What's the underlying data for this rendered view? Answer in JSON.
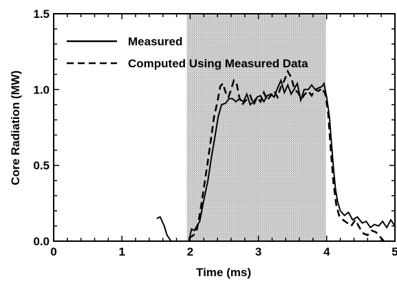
{
  "chart_data": {
    "type": "line",
    "xlabel": "Time (ms)",
    "ylabel": "Core Radiation (MW)",
    "xlim": [
      0,
      5
    ],
    "ylim": [
      0,
      1.5
    ],
    "x_ticks": [
      "0",
      "1",
      "2",
      "3",
      "4",
      "5"
    ],
    "y_ticks": [
      "0.0",
      "0.5",
      "1.0",
      "1.5"
    ],
    "x_tick_values": [
      0,
      1,
      2,
      3,
      4,
      5
    ],
    "y_tick_values": [
      0,
      0.5,
      1.0,
      1.5
    ],
    "grid": false,
    "legend_position": "top-left",
    "shaded_region": {
      "x_start": 1.95,
      "x_end": 3.99,
      "color": "#c8c8c8"
    },
    "series": [
      {
        "name": "Measured",
        "style": "solid",
        "color": "#000000",
        "points": [
          [
            1.51,
            0.15
          ],
          [
            1.56,
            0.16
          ],
          [
            1.62,
            0.1
          ],
          [
            1.66,
            0.04
          ],
          [
            1.72,
            0.0
          ],
          [
            1.98,
            0.0
          ],
          [
            2.02,
            0.08
          ],
          [
            2.06,
            0.07
          ],
          [
            2.1,
            0.1
          ],
          [
            2.14,
            0.13
          ],
          [
            2.2,
            0.27
          ],
          [
            2.26,
            0.4
          ],
          [
            2.31,
            0.55
          ],
          [
            2.36,
            0.68
          ],
          [
            2.41,
            0.82
          ],
          [
            2.46,
            0.9
          ],
          [
            2.52,
            0.91
          ],
          [
            2.57,
            0.94
          ],
          [
            2.62,
            0.94
          ],
          [
            2.67,
            0.92
          ],
          [
            2.72,
            0.94
          ],
          [
            2.78,
            0.92
          ],
          [
            2.83,
            0.97
          ],
          [
            2.88,
            0.9
          ],
          [
            2.93,
            0.92
          ],
          [
            2.98,
            0.95
          ],
          [
            3.03,
            0.96
          ],
          [
            3.08,
            0.92
          ],
          [
            3.13,
            0.96
          ],
          [
            3.18,
            0.97
          ],
          [
            3.23,
            0.95
          ],
          [
            3.28,
            1.01
          ],
          [
            3.33,
            1.06
          ],
          [
            3.38,
            0.98
          ],
          [
            3.43,
            1.03
          ],
          [
            3.48,
            0.97
          ],
          [
            3.52,
            1.0
          ],
          [
            3.57,
            1.04
          ],
          [
            3.62,
            0.93
          ],
          [
            3.67,
            1.0
          ],
          [
            3.73,
            1.0
          ],
          [
            3.78,
            1.03
          ],
          [
            3.83,
            1.0
          ],
          [
            3.88,
            1.01
          ],
          [
            3.93,
            1.02
          ],
          [
            3.96,
            1.04
          ],
          [
            4.0,
            0.95
          ],
          [
            4.04,
            0.82
          ],
          [
            4.07,
            0.65
          ],
          [
            4.1,
            0.48
          ],
          [
            4.13,
            0.34
          ],
          [
            4.16,
            0.26
          ],
          [
            4.2,
            0.2
          ],
          [
            4.26,
            0.17
          ],
          [
            4.32,
            0.19
          ],
          [
            4.38,
            0.14
          ],
          [
            4.45,
            0.16
          ],
          [
            4.52,
            0.12
          ],
          [
            4.58,
            0.13
          ],
          [
            4.64,
            0.09
          ],
          [
            4.7,
            0.11
          ],
          [
            4.76,
            0.1
          ],
          [
            4.82,
            0.13
          ],
          [
            4.88,
            0.09
          ],
          [
            4.94,
            0.14
          ],
          [
            5.0,
            0.1
          ]
        ]
      },
      {
        "name": "Computed Using Measured Data",
        "style": "dashed",
        "color": "#000000",
        "points": [
          [
            1.98,
            0.02
          ],
          [
            2.05,
            0.04
          ],
          [
            2.1,
            0.08
          ],
          [
            2.15,
            0.2
          ],
          [
            2.2,
            0.35
          ],
          [
            2.25,
            0.5
          ],
          [
            2.3,
            0.66
          ],
          [
            2.35,
            0.82
          ],
          [
            2.4,
            0.92
          ],
          [
            2.44,
            1.02
          ],
          [
            2.48,
            1.04
          ],
          [
            2.52,
            0.98
          ],
          [
            2.56,
            0.95
          ],
          [
            2.6,
            1.0
          ],
          [
            2.64,
            1.06
          ],
          [
            2.68,
            1.04
          ],
          [
            2.72,
            0.95
          ],
          [
            2.76,
            0.9
          ],
          [
            2.82,
            0.93
          ],
          [
            2.88,
            0.96
          ],
          [
            2.93,
            0.9
          ],
          [
            2.98,
            0.95
          ],
          [
            3.03,
            0.92
          ],
          [
            3.08,
            0.98
          ],
          [
            3.13,
            0.93
          ],
          [
            3.18,
            0.96
          ],
          [
            3.23,
            0.99
          ],
          [
            3.28,
            0.95
          ],
          [
            3.33,
            1.02
          ],
          [
            3.38,
            1.06
          ],
          [
            3.43,
            1.12
          ],
          [
            3.48,
            1.08
          ],
          [
            3.53,
            1.0
          ],
          [
            3.58,
            0.98
          ],
          [
            3.63,
            0.94
          ],
          [
            3.68,
            0.97
          ],
          [
            3.73,
            0.99
          ],
          [
            3.78,
            0.96
          ],
          [
            3.83,
            1.0
          ],
          [
            3.88,
            0.99
          ],
          [
            3.93,
            1.01
          ],
          [
            3.98,
            0.97
          ],
          [
            4.02,
            0.85
          ],
          [
            4.06,
            0.6
          ],
          [
            4.1,
            0.38
          ],
          [
            4.14,
            0.24
          ],
          [
            4.18,
            0.17
          ],
          [
            4.24,
            0.14
          ],
          [
            4.3,
            0.12
          ],
          [
            4.36,
            0.1
          ],
          [
            4.42,
            0.14
          ],
          [
            4.48,
            0.09
          ],
          [
            4.54,
            0.05
          ],
          [
            4.6,
            0.04
          ],
          [
            4.66,
            0.07
          ],
          [
            4.72,
            0.06
          ],
          [
            4.78,
            0.03
          ],
          [
            4.84,
            0.0
          ]
        ]
      }
    ]
  }
}
